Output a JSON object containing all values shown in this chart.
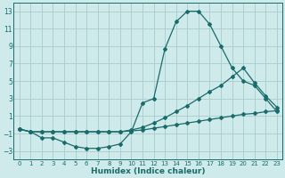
{
  "background_color": "#ceeaea",
  "grid_color": "#aacccc",
  "line_color": "#1a6b6b",
  "xlabel": "Humidex (Indice chaleur)",
  "xlim": [
    -0.5,
    23.5
  ],
  "ylim": [
    -4,
    14
  ],
  "yticks": [
    -3,
    -1,
    1,
    3,
    5,
    7,
    9,
    11,
    13
  ],
  "xticks": [
    0,
    1,
    2,
    3,
    4,
    5,
    6,
    7,
    8,
    9,
    10,
    11,
    12,
    13,
    14,
    15,
    16,
    17,
    18,
    19,
    20,
    21,
    22,
    23
  ],
  "line1_x": [
    0,
    1,
    2,
    3,
    4,
    5,
    6,
    7,
    8,
    9,
    10,
    11,
    12,
    13,
    14,
    15,
    16,
    17,
    18,
    19,
    20,
    21,
    22,
    23
  ],
  "line1_y": [
    -0.5,
    -0.8,
    -1.5,
    -1.5,
    -2.0,
    -2.5,
    -2.7,
    -2.7,
    -2.5,
    -2.2,
    -0.8,
    2.5,
    3.0,
    8.7,
    11.8,
    13.0,
    13.0,
    11.5,
    9.0,
    6.5,
    5.0,
    4.5,
    3.0,
    1.5
  ],
  "line2_x": [
    0,
    1,
    2,
    3,
    4,
    5,
    6,
    7,
    8,
    9,
    10,
    11,
    12,
    13,
    14,
    15,
    16,
    17,
    18,
    19,
    20,
    21,
    22,
    23
  ],
  "line2_y": [
    -0.5,
    -0.8,
    -0.8,
    -0.8,
    -0.8,
    -0.8,
    -0.8,
    -0.8,
    -0.8,
    -0.8,
    -0.6,
    -0.3,
    0.2,
    0.8,
    1.5,
    2.2,
    3.0,
    3.8,
    4.5,
    5.5,
    6.5,
    4.8,
    3.3,
    2.0
  ],
  "line3_x": [
    0,
    1,
    2,
    3,
    4,
    5,
    6,
    7,
    8,
    9,
    10,
    11,
    12,
    13,
    14,
    15,
    16,
    17,
    18,
    19,
    20,
    21,
    22,
    23
  ],
  "line3_y": [
    -0.5,
    -0.8,
    -0.8,
    -0.8,
    -0.8,
    -0.8,
    -0.8,
    -0.8,
    -0.8,
    -0.8,
    -0.7,
    -0.6,
    -0.4,
    -0.2,
    0.0,
    0.2,
    0.4,
    0.6,
    0.8,
    1.0,
    1.2,
    1.3,
    1.5,
    1.6
  ]
}
